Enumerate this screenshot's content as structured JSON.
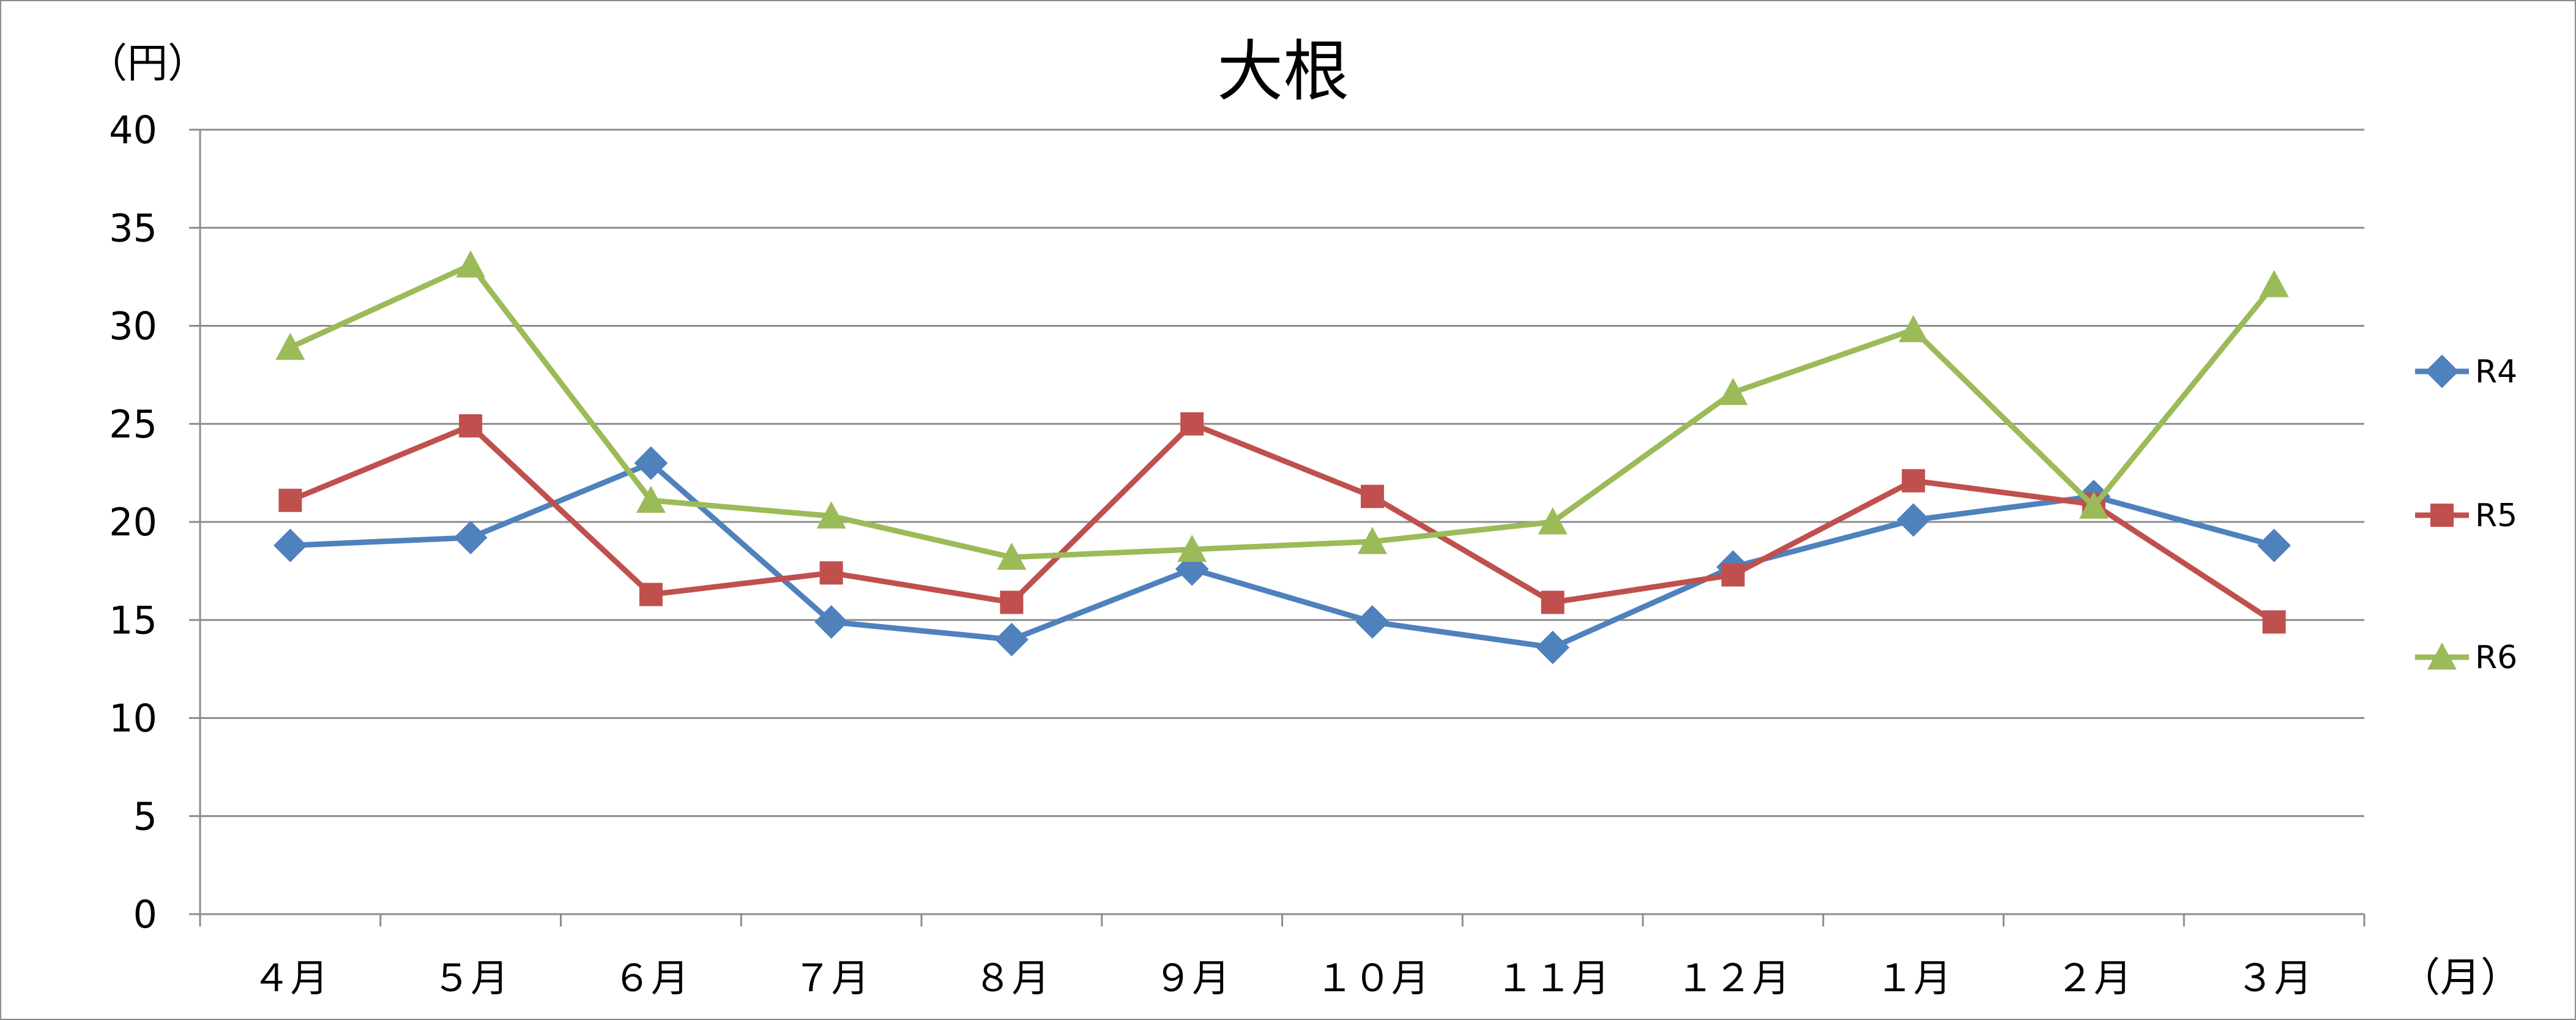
{
  "chart_data": {
    "type": "line",
    "title": "大根",
    "ylabel": "（円）",
    "xlabel": "（月）",
    "categories": [
      "４月",
      "５月",
      "６月",
      "７月",
      "８月",
      "９月",
      "１０月",
      "１１月",
      "１２月",
      "１月",
      "２月",
      "３月"
    ],
    "ylim": [
      0,
      40
    ],
    "yticks": [
      0,
      5,
      10,
      15,
      20,
      25,
      30,
      35,
      40
    ],
    "grid": true,
    "legend_position": "right",
    "series": [
      {
        "name": "R4",
        "color": "#4F81BD",
        "marker": "diamond",
        "values": [
          18.8,
          19.2,
          23.0,
          14.9,
          14.0,
          17.6,
          14.9,
          13.6,
          17.7,
          20.1,
          21.3,
          18.8
        ]
      },
      {
        "name": "R5",
        "color": "#C0504D",
        "marker": "square",
        "values": [
          21.1,
          24.9,
          16.3,
          17.4,
          15.9,
          25.0,
          21.3,
          15.9,
          17.3,
          22.1,
          20.9,
          14.9
        ]
      },
      {
        "name": "R6",
        "color": "#9BBB59",
        "marker": "triangle",
        "values": [
          28.9,
          33.1,
          21.1,
          20.3,
          18.2,
          18.6,
          19.0,
          20.0,
          26.6,
          29.8,
          20.8,
          32.1
        ]
      }
    ]
  }
}
